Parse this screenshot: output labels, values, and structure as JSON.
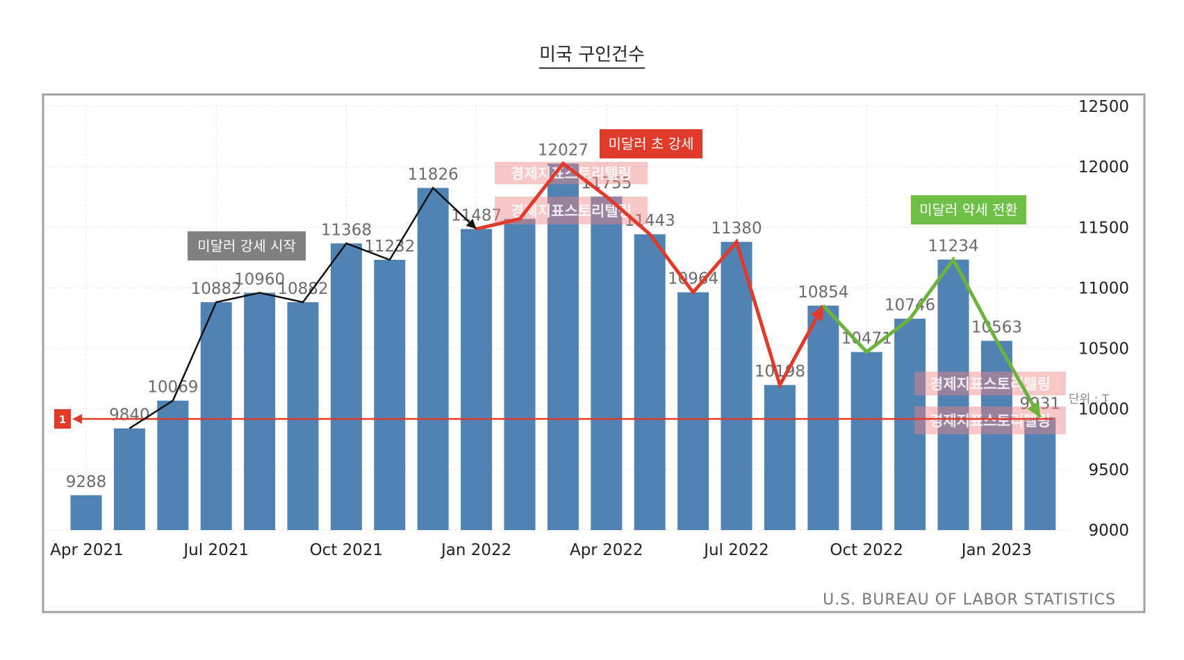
{
  "title": "미국 구인건수",
  "source": "U.S. BUREAU OF LABOR STATISTICS",
  "unit_label": "단위 : T",
  "watermark_text": "경제지표스토리텔링",
  "colors": {
    "bar": "#5182b4",
    "arrow_black": "#111111",
    "arrow_red": "#e03a2a",
    "arrow_green": "#6cb33e",
    "ann_gray": "#808080",
    "ann_red": "#e03a2a",
    "ann_green": "#6dbf45",
    "ref_line": "#e03a2a"
  },
  "annotations": [
    {
      "text": "미달러 강세 시작",
      "color": "#808080"
    },
    {
      "text": "미달러 초 강세",
      "color": "#e03a2a"
    },
    {
      "text": "미달러 약세 전환",
      "color": "#6dbf45"
    }
  ],
  "reference_line": {
    "value": 9931,
    "marker": "1"
  },
  "chart_data": {
    "type": "bar",
    "title": "미국 구인건수",
    "xlabel": "",
    "ylabel": "",
    "categories": [
      "2021-04",
      "2021-05",
      "2021-06",
      "2021-07",
      "2021-08",
      "2021-09",
      "2021-10",
      "2021-11",
      "2021-12",
      "2022-01",
      "2022-02",
      "2022-03",
      "2022-04",
      "2022-05",
      "2022-06",
      "2022-07",
      "2022-08",
      "2022-09",
      "2022-10",
      "2022-11",
      "2022-12",
      "2023-01",
      "2023-02"
    ],
    "values": [
      9288,
      9840,
      10069,
      10882,
      10960,
      10882,
      11368,
      11232,
      11826,
      11487,
      null,
      12027,
      11755,
      11443,
      10964,
      11380,
      10198,
      10854,
      10471,
      10746,
      11234,
      10563,
      9931
    ],
    "value_labels": [
      "9288",
      "9840",
      "10069",
      "10882",
      "10960",
      "10882",
      "11368",
      "11232",
      "11826",
      "11487",
      "",
      "12027",
      "11755",
      "11443",
      "10964",
      "11380",
      "10198",
      "10854",
      "10471",
      "10746",
      "11234",
      "10563",
      "9931"
    ],
    "x_tick_labels": [
      "Apr 2021",
      "Jul 2021",
      "Oct 2021",
      "Jan 2022",
      "Apr 2022",
      "Jul 2022",
      "Oct 2022",
      "Jan 2023"
    ],
    "x_tick_categories": [
      "2021-04",
      "2021-07",
      "2021-10",
      "2022-01",
      "2022-04",
      "2022-07",
      "2022-10",
      "2023-01"
    ],
    "y_ticks": [
      9000,
      9500,
      10000,
      10500,
      11000,
      11500,
      12000,
      12500
    ],
    "ylim": [
      9000,
      12500
    ],
    "y_axis_position": "right",
    "grid": true,
    "legend": "none",
    "trend_lines": [
      {
        "name": "",
        "color": "#111111",
        "categories": [
          "2021-05",
          "2021-06",
          "2021-07",
          "2021-08",
          "2021-09",
          "2021-10",
          "2021-11",
          "2021-12",
          "2022-01"
        ],
        "values": [
          9840,
          10069,
          10882,
          10960,
          10882,
          11368,
          11232,
          11826,
          11487
        ]
      },
      {
        "name": "",
        "color": "#e03a2a",
        "categories": [
          "2022-01",
          "2022-02",
          "2022-03",
          "2022-04",
          "2022-05",
          "2022-06",
          "2022-07",
          "2022-08",
          "2022-09"
        ],
        "values": [
          11487,
          11570,
          12027,
          11755,
          11443,
          10964,
          11380,
          10198,
          10854
        ]
      },
      {
        "name": "",
        "color": "#6cb33e",
        "categories": [
          "2022-09",
          "2022-10",
          "2022-11",
          "2022-12",
          "2023-01",
          "2023-02"
        ],
        "values": [
          10854,
          10471,
          10746,
          11234,
          10563,
          9931
        ]
      }
    ]
  }
}
